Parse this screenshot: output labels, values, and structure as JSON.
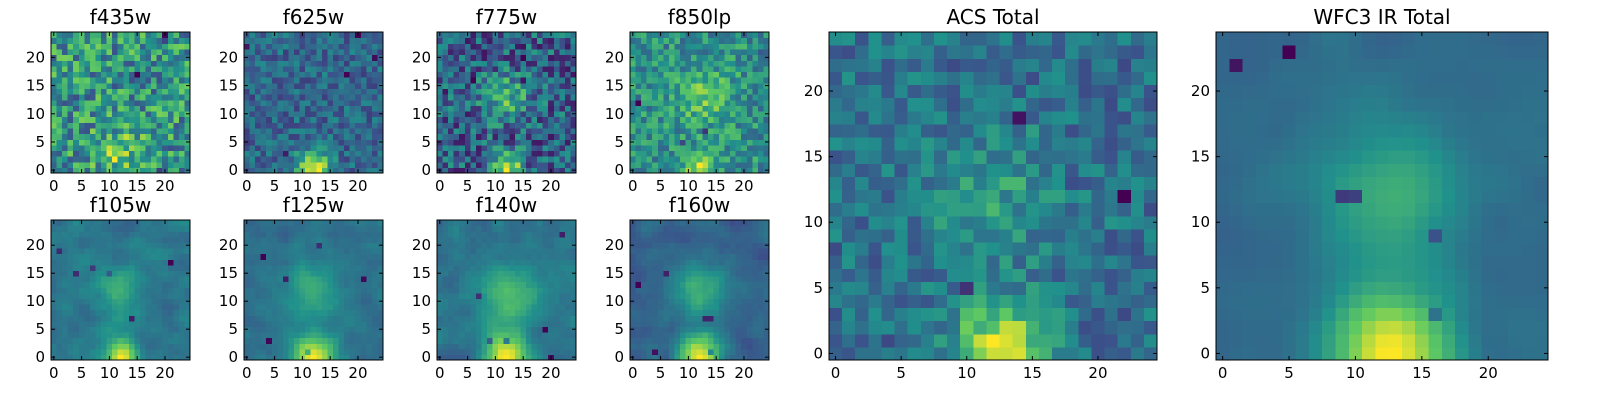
{
  "figure": {
    "background": "#ffffff",
    "colormap": "viridis",
    "colormap_stops": [
      "#440154",
      "#3b528b",
      "#21918c",
      "#5ec962",
      "#fde725"
    ]
  },
  "chart_data": [
    {
      "type": "heatmap",
      "title": "f435w",
      "xlim": [
        0,
        24
      ],
      "ylim": [
        0,
        24
      ],
      "x_ticks": [
        "0",
        "5",
        "10",
        "15",
        "20"
      ],
      "y_ticks": [
        "0",
        "5",
        "10",
        "15",
        "20"
      ],
      "grid_size": 25,
      "blob": {
        "x": 12,
        "y": 3,
        "amplitude": 0.25,
        "width": 3
      },
      "noise": 0.3,
      "bias": 0.72,
      "smooth": 0,
      "seed": 11
    },
    {
      "type": "heatmap",
      "title": "f625w",
      "xlim": [
        0,
        24
      ],
      "ylim": [
        0,
        24
      ],
      "x_ticks": [
        "0",
        "5",
        "10",
        "15",
        "20"
      ],
      "y_ticks": [
        "0",
        "5",
        "10",
        "15",
        "20"
      ],
      "grid_size": 25,
      "blob": {
        "x": 12,
        "y": 0.5,
        "amplitude": 0.9,
        "width": 2
      },
      "noise": 0.2,
      "bias": 0.45,
      "smooth": 0,
      "seed": 23
    },
    {
      "type": "heatmap",
      "title": "f775w",
      "xlim": [
        0,
        24
      ],
      "ylim": [
        0,
        24
      ],
      "x_ticks": [
        "0",
        "5",
        "10",
        "15",
        "20"
      ],
      "y_ticks": [
        "0",
        "5",
        "10",
        "15",
        "20"
      ],
      "grid_size": 25,
      "blob": {
        "x": 12,
        "y": 13,
        "amplitude": 0.35,
        "width": 3
      },
      "blob2": {
        "x": 12,
        "y": 0.5,
        "amplitude": 0.6,
        "width": 2
      },
      "noise": 0.25,
      "bias": 0.55,
      "smooth": 0,
      "seed": 37
    },
    {
      "type": "heatmap",
      "title": "f850lp",
      "xlim": [
        0,
        24
      ],
      "ylim": [
        0,
        24
      ],
      "x_ticks": [
        "0",
        "5",
        "10",
        "15",
        "20"
      ],
      "y_ticks": [
        "0",
        "5",
        "10",
        "15",
        "20"
      ],
      "grid_size": 25,
      "blob": {
        "x": 13,
        "y": 13,
        "amplitude": 0.3,
        "width": 3.5
      },
      "blob2": {
        "x": 12,
        "y": 0.5,
        "amplitude": 0.55,
        "width": 2
      },
      "noise": 0.25,
      "bias": 0.58,
      "smooth": 0,
      "seed": 53
    },
    {
      "type": "heatmap",
      "title": "f105w",
      "xlim": [
        0,
        24
      ],
      "ylim": [
        0,
        24
      ],
      "x_ticks": [
        "0",
        "5",
        "10",
        "15",
        "20"
      ],
      "y_ticks": [
        "0",
        "5",
        "10",
        "15",
        "20"
      ],
      "grid_size": 25,
      "blob": {
        "x": 12,
        "y": 12,
        "amplitude": 0.25,
        "width": 3
      },
      "blob2": {
        "x": 12,
        "y": 0.5,
        "amplitude": 0.7,
        "width": 2
      },
      "noise": 0.18,
      "bias": 0.5,
      "smooth": 1,
      "seed": 71
    },
    {
      "type": "heatmap",
      "title": "f125w",
      "xlim": [
        0,
        24
      ],
      "ylim": [
        0,
        24
      ],
      "x_ticks": [
        "0",
        "5",
        "10",
        "15",
        "20"
      ],
      "y_ticks": [
        "0",
        "5",
        "10",
        "15",
        "20"
      ],
      "grid_size": 25,
      "blob": {
        "x": 12,
        "y": 12,
        "amplitude": 0.3,
        "width": 3.5
      },
      "blob2": {
        "x": 12,
        "y": 0.5,
        "amplitude": 0.75,
        "width": 2.5
      },
      "noise": 0.15,
      "bias": 0.4,
      "smooth": 1,
      "seed": 89
    },
    {
      "type": "heatmap",
      "title": "f140w",
      "xlim": [
        0,
        24
      ],
      "ylim": [
        0,
        24
      ],
      "x_ticks": [
        "0",
        "5",
        "10",
        "15",
        "20"
      ],
      "y_ticks": [
        "0",
        "5",
        "10",
        "15",
        "20"
      ],
      "grid_size": 25,
      "blob": {
        "x": 12.5,
        "y": 11,
        "amplitude": 0.35,
        "width": 3.5
      },
      "blob2": {
        "x": 12,
        "y": 0.5,
        "amplitude": 0.75,
        "width": 2.5
      },
      "noise": 0.15,
      "bias": 0.45,
      "smooth": 1,
      "seed": 97
    },
    {
      "type": "heatmap",
      "title": "f160w",
      "xlim": [
        0,
        24
      ],
      "ylim": [
        0,
        24
      ],
      "x_ticks": [
        "0",
        "5",
        "10",
        "15",
        "20"
      ],
      "y_ticks": [
        "0",
        "5",
        "10",
        "15",
        "20"
      ],
      "grid_size": 25,
      "blob": {
        "x": 12,
        "y": 12,
        "amplitude": 0.35,
        "width": 3.5
      },
      "blob2": {
        "x": 12,
        "y": 0.5,
        "amplitude": 0.8,
        "width": 2.5
      },
      "noise": 0.15,
      "bias": 0.45,
      "smooth": 1,
      "seed": 113
    },
    {
      "type": "heatmap",
      "title": "ACS Total",
      "xlim": [
        0,
        24
      ],
      "ylim": [
        0,
        24
      ],
      "x_ticks": [
        "0",
        "5",
        "10",
        "15",
        "20"
      ],
      "y_ticks": [
        "0",
        "5",
        "10",
        "15",
        "20"
      ],
      "grid_size": 25,
      "blob": {
        "x": 12,
        "y": 12,
        "amplitude": 0.25,
        "width": 3.5
      },
      "blob2": {
        "x": 12.5,
        "y": 0.5,
        "amplitude": 0.75,
        "width": 2.5
      },
      "noise": 0.2,
      "bias": 0.5,
      "smooth": 0,
      "seed": 131
    },
    {
      "type": "heatmap",
      "title": "WFC3 IR Total",
      "xlim": [
        0,
        24
      ],
      "ylim": [
        0,
        24
      ],
      "x_ticks": [
        "0",
        "5",
        "10",
        "15",
        "20"
      ],
      "y_ticks": [
        "0",
        "5",
        "10",
        "15",
        "20"
      ],
      "grid_size": 25,
      "blob": {
        "x": 12.5,
        "y": 12,
        "amplitude": 0.35,
        "width": 3.5
      },
      "blob2": {
        "x": 12.5,
        "y": 0.5,
        "amplitude": 0.8,
        "width": 3
      },
      "noise": 0.12,
      "bias": 0.4,
      "smooth": 2,
      "seed": 149
    }
  ]
}
